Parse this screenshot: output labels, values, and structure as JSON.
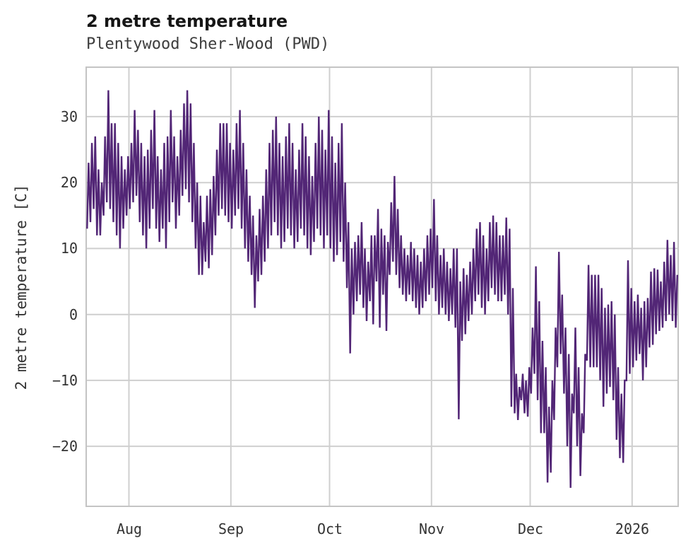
{
  "chart_data": {
    "type": "line",
    "title": "2 metre temperature",
    "subtitle": "Plentywood Sher-Wood (PWD)",
    "ylabel": "2 metre temperature [C]",
    "xlabel": "",
    "legend": "none",
    "grid": true,
    "ylim": [
      -29.1,
      37.5
    ],
    "y_ticks": [
      {
        "value": 30,
        "label": "30"
      },
      {
        "value": 20,
        "label": "20"
      },
      {
        "value": 10,
        "label": "10"
      },
      {
        "value": 0,
        "label": "0"
      },
      {
        "value": -10,
        "label": "−10"
      },
      {
        "value": -20,
        "label": "−20"
      }
    ],
    "x_ticks": [
      {
        "label": "Aug",
        "day": 13
      },
      {
        "label": "Sep",
        "day": 44
      },
      {
        "label": "Oct",
        "day": 74
      },
      {
        "label": "Nov",
        "day": 105
      },
      {
        "label": "Dec",
        "day": 135
      },
      {
        "label": "2026",
        "day": 166
      }
    ],
    "total_days": 180,
    "colors": {
      "line": "#522676",
      "grid": "#cfcfcf",
      "spine": "#c4c4c4",
      "text": "#333333",
      "background": "#ffffff"
    },
    "series": [
      {
        "name": "2 metre temperature",
        "unit": "C",
        "sampling": "daily [min,max] pairs, day 0 at left edge (mid-July) through mid-January 2026",
        "daily_min_max": [
          [
            13,
            23
          ],
          [
            14,
            26
          ],
          [
            16,
            27
          ],
          [
            12,
            22
          ],
          [
            12,
            20
          ],
          [
            15,
            27
          ],
          [
            17,
            34
          ],
          [
            16,
            29
          ],
          [
            14,
            29
          ],
          [
            12,
            26
          ],
          [
            10,
            24
          ],
          [
            13,
            22
          ],
          [
            15,
            24
          ],
          [
            16,
            26
          ],
          [
            17,
            31
          ],
          [
            18,
            28
          ],
          [
            14,
            26
          ],
          [
            12,
            24
          ],
          [
            10,
            25
          ],
          [
            13,
            28
          ],
          [
            16,
            31
          ],
          [
            13,
            24
          ],
          [
            11,
            22
          ],
          [
            13,
            26
          ],
          [
            10,
            27
          ],
          [
            14,
            31
          ],
          [
            17,
            27
          ],
          [
            13,
            24
          ],
          [
            15,
            28
          ],
          [
            18,
            32
          ],
          [
            19,
            34
          ],
          [
            17,
            32
          ],
          [
            14,
            26
          ],
          [
            10,
            20
          ],
          [
            6,
            18
          ],
          [
            6,
            14
          ],
          [
            8,
            18
          ],
          [
            7,
            19
          ],
          [
            9,
            21
          ],
          [
            12,
            25
          ],
          [
            15,
            29
          ],
          [
            16,
            29
          ],
          [
            15,
            29
          ],
          [
            14,
            26
          ],
          [
            13,
            25
          ],
          [
            15,
            29
          ],
          [
            16,
            31
          ],
          [
            13,
            26
          ],
          [
            10,
            22
          ],
          [
            8,
            18
          ],
          [
            6,
            15
          ],
          [
            1,
            12
          ],
          [
            5,
            16
          ],
          [
            6,
            18
          ],
          [
            8,
            22
          ],
          [
            10,
            26
          ],
          [
            12,
            28
          ],
          [
            14,
            30
          ],
          [
            12,
            26
          ],
          [
            10,
            24
          ],
          [
            11,
            27
          ],
          [
            13,
            29
          ],
          [
            12,
            26
          ],
          [
            10,
            22
          ],
          [
            11,
            25
          ],
          [
            13,
            29
          ],
          [
            12,
            27
          ],
          [
            10,
            24
          ],
          [
            9,
            21
          ],
          [
            11,
            26
          ],
          [
            13,
            30
          ],
          [
            12,
            28
          ],
          [
            10,
            25
          ],
          [
            12,
            31
          ],
          [
            10,
            27
          ],
          [
            8,
            23
          ],
          [
            9,
            26
          ],
          [
            11,
            29
          ],
          [
            8,
            20
          ],
          [
            4,
            14
          ],
          [
            -5.9,
            10
          ],
          [
            0,
            11
          ],
          [
            2,
            12
          ],
          [
            3,
            14
          ],
          [
            1,
            10
          ],
          [
            -1,
            8
          ],
          [
            2,
            12
          ],
          [
            -1.5,
            12
          ],
          [
            5,
            16
          ],
          [
            -2,
            13
          ],
          [
            3,
            12
          ],
          [
            -2.5,
            11
          ],
          [
            6,
            17
          ],
          [
            8,
            21
          ],
          [
            6,
            16
          ],
          [
            4,
            12
          ],
          [
            3,
            10
          ],
          [
            2,
            9
          ],
          [
            3,
            11
          ],
          [
            2,
            10
          ],
          [
            1,
            9
          ],
          [
            0,
            8
          ],
          [
            1,
            10
          ],
          [
            2,
            12
          ],
          [
            3,
            13
          ],
          [
            4,
            17.5
          ],
          [
            2,
            12
          ],
          [
            0,
            9
          ],
          [
            1,
            10
          ],
          [
            0,
            8
          ],
          [
            -1,
            7
          ],
          [
            0,
            10
          ],
          [
            -2,
            10
          ],
          [
            -15.9,
            5
          ],
          [
            -4,
            7
          ],
          [
            -3,
            6
          ],
          [
            -1,
            8
          ],
          [
            0,
            10
          ],
          [
            2,
            13
          ],
          [
            3,
            14
          ],
          [
            1,
            12
          ],
          [
            0,
            10
          ],
          [
            2,
            14
          ],
          [
            4,
            15
          ],
          [
            3,
            14
          ],
          [
            2,
            12
          ],
          [
            2,
            12
          ],
          [
            3,
            14.7
          ],
          [
            0,
            13
          ],
          [
            -14,
            4
          ],
          [
            -15,
            -9
          ],
          [
            -16,
            -11
          ],
          [
            -13,
            -9
          ],
          [
            -15,
            -10
          ],
          [
            -15.5,
            -8
          ],
          [
            -12,
            -2
          ],
          [
            -9,
            7.3
          ],
          [
            -13,
            2
          ],
          [
            -18,
            -4
          ],
          [
            -18,
            -8
          ],
          [
            -25.5,
            -14
          ],
          [
            -24,
            -10
          ],
          [
            -16,
            -2
          ],
          [
            -8,
            9.5
          ],
          [
            -6,
            3
          ],
          [
            -12,
            -2
          ],
          [
            -20,
            -6
          ],
          [
            -26.3,
            -12
          ],
          [
            -15,
            -2
          ],
          [
            -20,
            -8
          ],
          [
            -24.5,
            -15
          ],
          [
            -18,
            -6
          ],
          [
            -7,
            7.5
          ],
          [
            -8,
            6
          ],
          [
            -8,
            6
          ],
          [
            -8,
            6
          ],
          [
            -10,
            4
          ],
          [
            -14,
            1
          ],
          [
            -12,
            1.5
          ],
          [
            -11,
            2
          ],
          [
            -13,
            0
          ],
          [
            -19,
            -8
          ],
          [
            -21.8,
            -12
          ],
          [
            -22.5,
            -10
          ],
          [
            -10,
            8.2
          ],
          [
            -9,
            4
          ],
          [
            -8,
            2
          ],
          [
            -7,
            3
          ],
          [
            -6,
            1
          ],
          [
            -10,
            2
          ],
          [
            -8,
            2.5
          ],
          [
            -5,
            6.5
          ],
          [
            -4.6,
            7
          ],
          [
            -3,
            6.8
          ],
          [
            -2.5,
            5
          ],
          [
            -2,
            8
          ],
          [
            -1,
            11.3
          ],
          [
            0,
            9
          ],
          [
            -1,
            11
          ],
          [
            -2,
            6
          ]
        ]
      }
    ]
  }
}
